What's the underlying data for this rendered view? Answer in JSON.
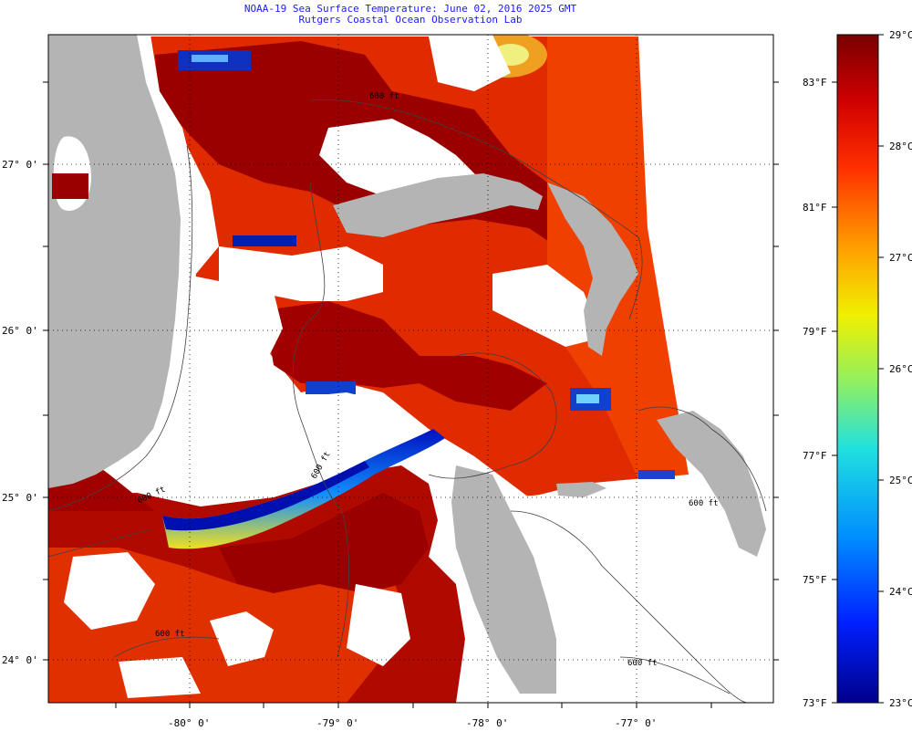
{
  "header": {
    "title": "NOAA-19 Sea Surface Temperature:  June 02, 2016 2025 GMT",
    "subtitle": "Rutgers Coastal Ocean Observation Lab"
  },
  "latitude_labels": [
    "27° 0'",
    "26° 0'",
    "25° 0'",
    "24° 0'"
  ],
  "longitude_labels": [
    "-80° 0'",
    "-79° 0'",
    "-78° 0'",
    "-77° 0'"
  ],
  "contour_labels": [
    "600 ft",
    "600 ft",
    "600 ft",
    "600 ft",
    "600 ft",
    "600 ft"
  ],
  "colorbar": {
    "fahrenheit_labels": [
      "83°F",
      "81°F",
      "79°F",
      "77°F",
      "75°F",
      "73°F"
    ],
    "celsius_labels": [
      "29°C",
      "28°C",
      "27°C",
      "26°C",
      "25°C",
      "24°C",
      "23°C"
    ],
    "range_c": [
      23,
      29
    ],
    "range_f": [
      73,
      84.2
    ]
  },
  "colors": {
    "land": "#b4b4b4",
    "no_data": "#ffffff",
    "sst_hot": "#8b0000",
    "sst_warm": "#e42000",
    "sst_cold": "#0000a0",
    "title_text": "#1a1aff"
  }
}
